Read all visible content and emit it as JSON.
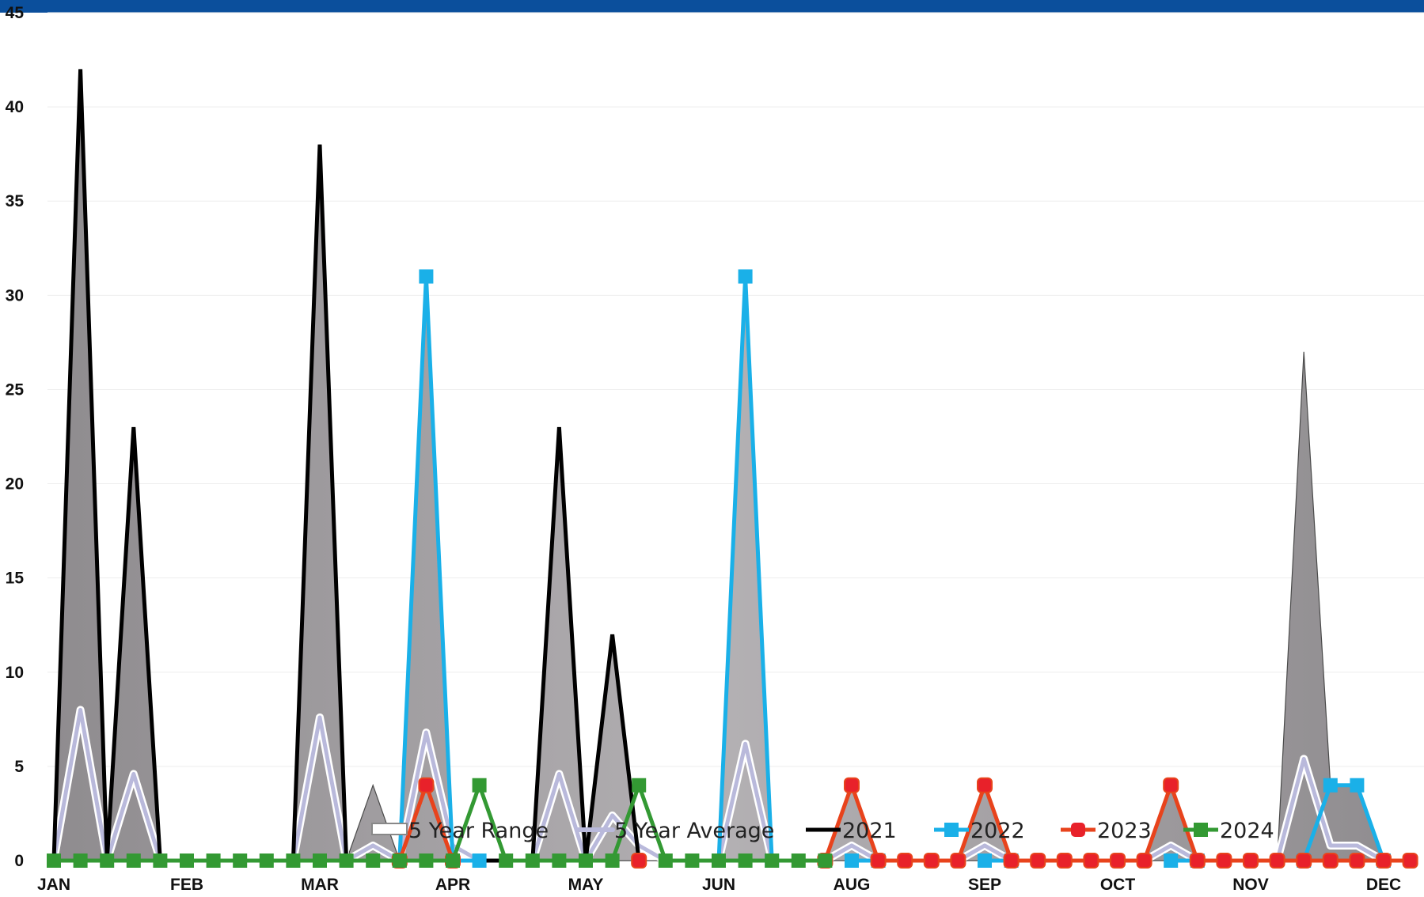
{
  "colors": {
    "top_bar": "#0b4f9c",
    "range_fill": "#aaa7aa",
    "average": "#b9b9db",
    "y2021": "#000000",
    "y2022": "#1ab0e8",
    "y2023": "#e8431c",
    "y2024": "#339933"
  },
  "chart_data": {
    "type": "area",
    "title": "",
    "xlabel": "",
    "ylabel": "",
    "ylim": [
      0,
      45
    ],
    "y_ticks": [
      0,
      5,
      10,
      15,
      20,
      25,
      30,
      35,
      40,
      45
    ],
    "grid": true,
    "legend_position": "bottom-center",
    "month_labels": [
      {
        "label": "JAN",
        "week": 1
      },
      {
        "label": "FEB",
        "week": 6
      },
      {
        "label": "MAR",
        "week": 11
      },
      {
        "label": "APR",
        "week": 16
      },
      {
        "label": "MAY",
        "week": 21
      },
      {
        "label": "JUN",
        "week": 26
      },
      {
        "label": "AUG",
        "week": 31
      },
      {
        "label": "SEP",
        "week": 36
      },
      {
        "label": "OCT",
        "week": 41
      },
      {
        "label": "NOV",
        "week": 46
      },
      {
        "label": "DEC",
        "week": 51
      }
    ],
    "weeks": [
      1,
      2,
      3,
      4,
      5,
      6,
      7,
      8,
      9,
      10,
      11,
      12,
      13,
      14,
      15,
      16,
      17,
      18,
      19,
      20,
      21,
      22,
      23,
      24,
      25,
      26,
      27,
      28,
      29,
      30,
      31,
      32,
      33,
      34,
      35,
      36,
      37,
      38,
      39,
      40,
      41,
      42,
      43,
      44,
      45,
      46,
      47,
      48,
      49,
      50,
      51,
      52
    ],
    "series": [
      {
        "name": "5 Year Range",
        "kind": "range",
        "values": [
          0,
          42,
          0,
          23,
          0,
          0,
          0,
          0,
          0,
          0,
          38,
          0,
          4,
          0,
          31,
          0,
          0,
          0,
          0,
          23,
          0,
          12,
          0,
          0,
          0,
          0,
          31,
          0,
          0,
          0,
          4,
          0,
          0,
          0,
          0,
          4,
          0,
          0,
          0,
          0,
          0,
          0,
          4,
          0,
          0,
          0,
          0,
          27,
          4,
          4,
          0,
          0
        ]
      },
      {
        "name": "5 Year Average",
        "kind": "average",
        "values": [
          0,
          8,
          0,
          4.6,
          0,
          0,
          0,
          0,
          0,
          0,
          7.6,
          0,
          0.8,
          0,
          6.8,
          0.8,
          0,
          0,
          0,
          4.6,
          0,
          2.4,
          0.8,
          0,
          0,
          0,
          6.2,
          0,
          0,
          0,
          0.8,
          0,
          0,
          0,
          0,
          0.8,
          0,
          0,
          0,
          0,
          0,
          0,
          0.8,
          0,
          0,
          0,
          0,
          5.4,
          0.8,
          0.8,
          0,
          0
        ]
      },
      {
        "name": "2021",
        "kind": "line",
        "values": [
          0,
          42,
          0,
          23,
          0,
          null,
          null,
          null,
          0,
          0,
          38,
          0,
          0,
          0,
          0,
          0,
          0,
          0,
          0,
          23,
          0,
          12,
          0,
          null,
          null,
          null,
          null,
          null,
          null,
          null,
          null,
          null,
          null,
          null,
          null,
          null,
          null,
          null,
          null,
          null,
          null,
          null,
          null,
          null,
          null,
          null,
          null,
          null,
          null,
          null,
          null,
          null
        ]
      },
      {
        "name": "2022",
        "kind": "marker",
        "values": [
          null,
          null,
          null,
          null,
          null,
          null,
          null,
          null,
          null,
          null,
          null,
          null,
          null,
          0,
          31,
          0,
          0,
          null,
          null,
          null,
          null,
          null,
          null,
          null,
          null,
          0,
          31,
          0,
          null,
          null,
          0,
          0,
          null,
          null,
          null,
          0,
          0,
          null,
          null,
          null,
          null,
          null,
          0,
          0,
          null,
          null,
          null,
          0,
          4,
          4,
          0,
          null
        ]
      },
      {
        "name": "2023",
        "kind": "marker",
        "values": [
          null,
          null,
          null,
          null,
          null,
          null,
          null,
          null,
          null,
          null,
          null,
          null,
          null,
          0,
          4,
          0,
          null,
          null,
          null,
          null,
          null,
          null,
          0,
          null,
          null,
          null,
          null,
          null,
          null,
          0,
          4,
          0,
          0,
          0,
          0,
          4,
          0,
          0,
          0,
          0,
          0,
          0,
          4,
          0,
          0,
          0,
          0,
          0,
          0,
          0,
          0,
          0
        ]
      },
      {
        "name": "2024",
        "kind": "marker",
        "values": [
          0,
          0,
          0,
          0,
          0,
          0,
          0,
          0,
          0,
          0,
          0,
          0,
          0,
          0,
          0,
          0,
          4,
          0,
          0,
          0,
          0,
          0,
          4,
          0,
          0,
          0,
          0,
          0,
          0,
          0,
          null,
          null,
          null,
          null,
          null,
          null,
          null,
          null,
          null,
          null,
          null,
          null,
          null,
          null,
          null,
          null,
          null,
          null,
          null,
          null,
          null,
          null
        ]
      }
    ]
  }
}
